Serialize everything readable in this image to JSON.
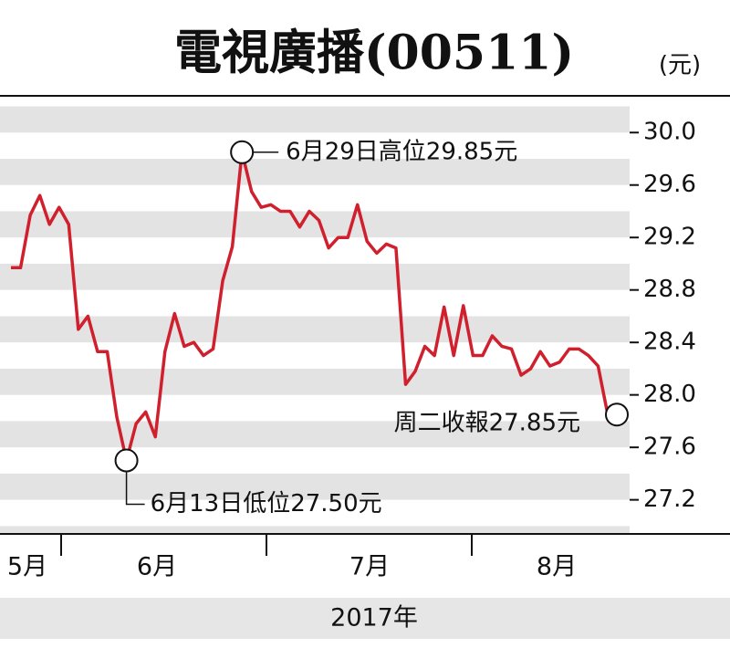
{
  "chart_data": {
    "type": "line",
    "title": "電視廣播(00511)",
    "unit_label": "(元)",
    "x_axis_label": "2017年",
    "month_labels": [
      "5月",
      "6月",
      "7月",
      "8月"
    ],
    "series": [
      {
        "name": "電視廣播",
        "color": "#d0202e",
        "values": [
          28.97,
          28.97,
          29.37,
          29.52,
          29.3,
          29.43,
          29.3,
          28.5,
          28.6,
          28.33,
          28.33,
          27.83,
          27.5,
          27.78,
          27.87,
          27.68,
          28.33,
          28.62,
          28.37,
          28.4,
          28.3,
          28.35,
          28.87,
          29.13,
          29.85,
          29.55,
          29.43,
          29.45,
          29.4,
          29.4,
          29.28,
          29.4,
          29.33,
          29.12,
          29.2,
          29.2,
          29.45,
          29.17,
          29.08,
          29.15,
          29.12,
          28.08,
          28.18,
          28.37,
          28.3,
          28.67,
          28.3,
          28.68,
          28.3,
          28.3,
          28.45,
          28.37,
          28.35,
          28.15,
          28.2,
          28.33,
          28.22,
          28.25,
          28.35,
          28.35,
          28.3,
          28.22,
          27.85
        ]
      }
    ],
    "annotations": [
      {
        "text": "6月29日高位29.85元"
      },
      {
        "text": "6月13日低位27.50元"
      },
      {
        "text": "周二收報27.85元"
      }
    ],
    "ylim": [
      26.94,
      30.28
    ],
    "yticks": [
      27.2,
      27.6,
      {
        "value": 28,
        "label": "28.0"
      },
      28.4,
      28.8,
      29.2,
      29.6,
      {
        "value": 30,
        "label": "30.0"
      }
    ],
    "grid": true
  }
}
